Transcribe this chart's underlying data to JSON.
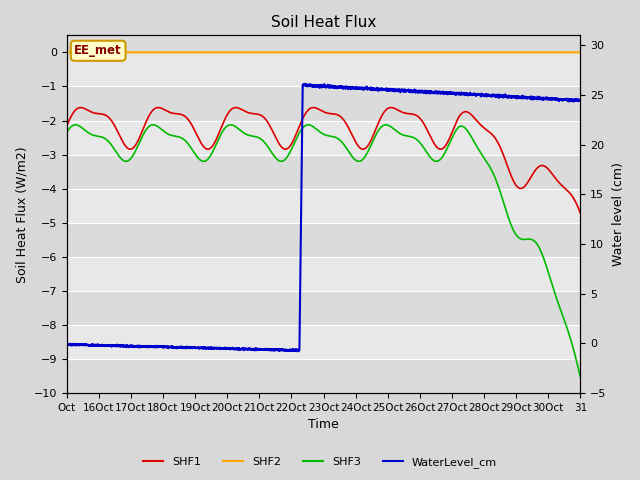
{
  "title": "Soil Heat Flux",
  "ylabel_left": "Soil Heat Flux (W/m2)",
  "ylabel_right": "Water level (cm)",
  "xlabel": "Time",
  "ylim_left": [
    -10.0,
    0.5
  ],
  "ylim_right": [
    -5,
    31
  ],
  "annotation_label": "EE_met",
  "annotation_bg": "#ffffcc",
  "annotation_border": "#cc9900",
  "annotation_text_color": "#880000",
  "shf2_color": "#FFA500",
  "shf1_color": "#DD0000",
  "shf3_color": "#00BB00",
  "water_color": "#0000CC",
  "grid_color": "#ffffff",
  "fig_bg": "#d8d8d8",
  "ax_bg": "#e8e8e8"
}
